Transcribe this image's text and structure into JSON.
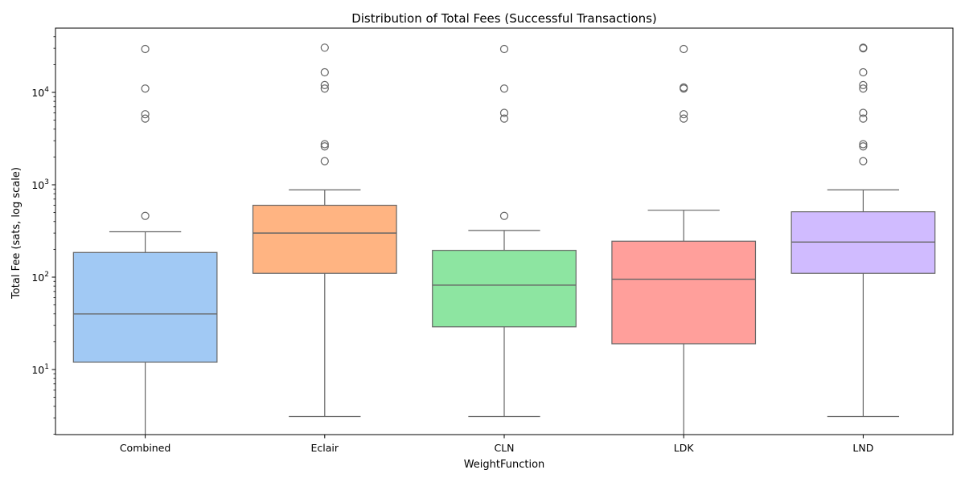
{
  "chart_data": {
    "type": "box",
    "title": "Distribution of Total Fees (Successful Transactions)",
    "xlabel": "WeightFunction",
    "ylabel": "Total Fee (sats, log scale)",
    "yscale": "log",
    "ylim": [
      2,
      50000
    ],
    "y_ticks": [
      {
        "value": 10,
        "base": "10",
        "exp": "1"
      },
      {
        "value": 100,
        "base": "10",
        "exp": "2"
      },
      {
        "value": 1000,
        "base": "10",
        "exp": "3"
      },
      {
        "value": 10000,
        "base": "10",
        "exp": "4"
      }
    ],
    "grid": false,
    "categories": [
      "Combined",
      "Eclair",
      "CLN",
      "LDK",
      "LND"
    ],
    "boxes": [
      {
        "category": "Combined",
        "color": "#a1c9f4",
        "whisker_low": 2,
        "q1": 12,
        "median": 40,
        "q3": 185,
        "whisker_high": 310,
        "outliers": [
          460,
          5200,
          5800,
          11000,
          29500
        ]
      },
      {
        "category": "Eclair",
        "color": "#ffb482",
        "whisker_low": 3.1,
        "q1": 110,
        "median": 300,
        "q3": 600,
        "whisker_high": 880,
        "outliers": [
          1800,
          2600,
          2750,
          11000,
          12000,
          16500,
          30500
        ]
      },
      {
        "category": "CLN",
        "color": "#8de5a1",
        "whisker_low": 3.1,
        "q1": 29,
        "median": 82,
        "q3": 195,
        "whisker_high": 320,
        "outliers": [
          460,
          5200,
          6000,
          11000,
          29500
        ]
      },
      {
        "category": "LDK",
        "color": "#ff9f9b",
        "whisker_low": 2,
        "q1": 19,
        "median": 95,
        "q3": 245,
        "whisker_high": 530,
        "outliers": [
          5200,
          5800,
          11000,
          11300,
          29500
        ]
      },
      {
        "category": "LND",
        "color": "#d0bbff",
        "whisker_low": 3.1,
        "q1": 110,
        "median": 240,
        "q3": 510,
        "whisker_high": 880,
        "outliers": [
          1800,
          2600,
          2750,
          5200,
          6000,
          11000,
          12000,
          16500,
          30000,
          30500
        ]
      }
    ]
  }
}
